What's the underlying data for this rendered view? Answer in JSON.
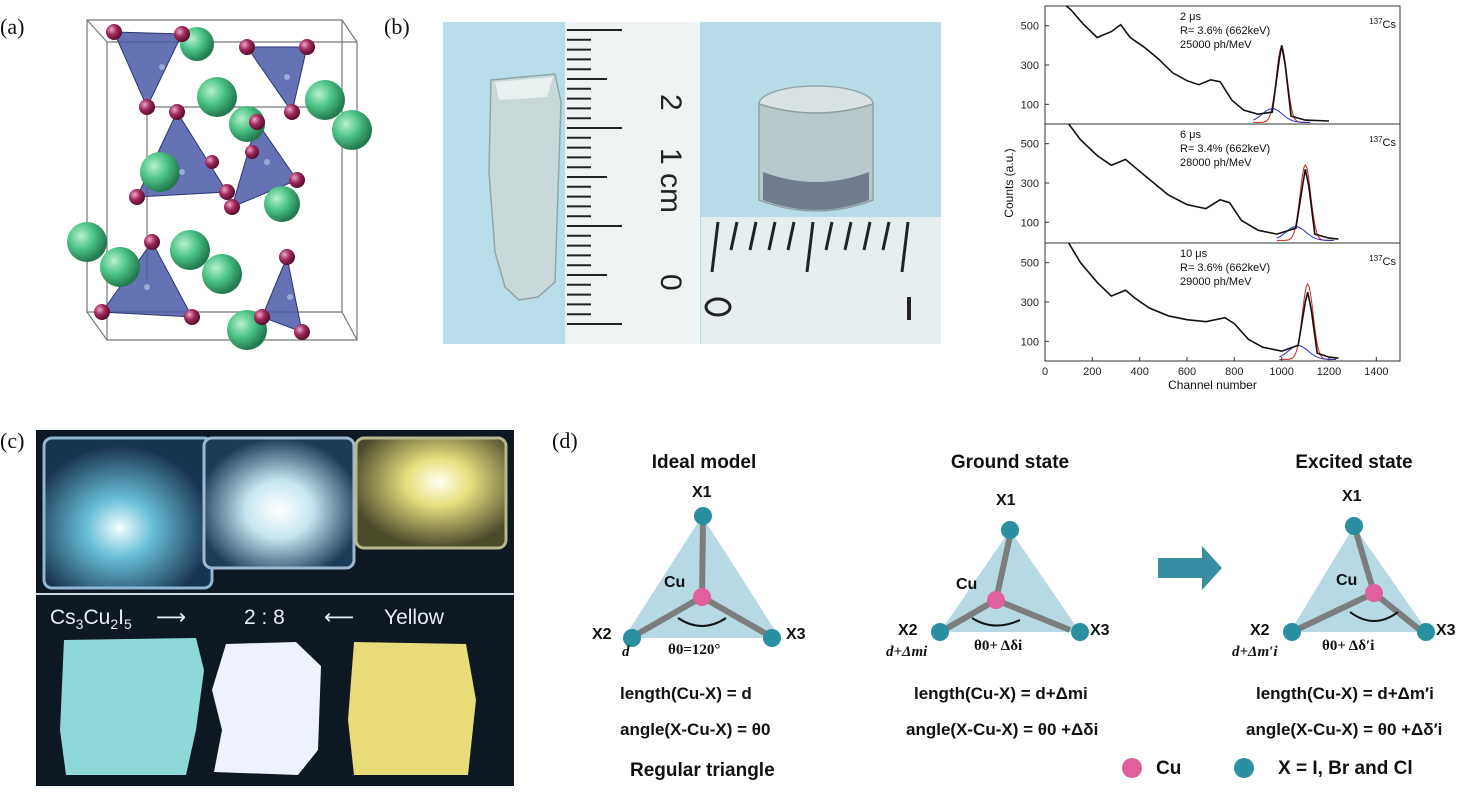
{
  "panel_labels": {
    "a": "(a)",
    "b": "(b)",
    "c": "(c)",
    "d": "(d)"
  },
  "panel_b_photo": {
    "ruler_labels": [
      "0",
      "1 cm",
      "2"
    ]
  },
  "panel_c_photo": {
    "caption_left": "Cs3Cu2I5",
    "caption_left_formula": {
      "p1": "Cs",
      "s1": "3",
      "p2": "Cu",
      "s2": "2",
      "p3": "I",
      "s3": "5"
    },
    "caption_arrow_right": "⟶",
    "caption_mid": "2 : 8",
    "caption_arrow_left": "⟵",
    "caption_right": "Yellow"
  },
  "chart_data": [
    {
      "type": "line",
      "panel": "top",
      "annotation_lines": [
        "2 μs",
        "R= 3.6% (662keV)",
        "25000 ph/MeV"
      ],
      "source_label": "137Cs",
      "ylim": [
        0,
        600
      ],
      "yticks": [
        100,
        300,
        500
      ],
      "xlim": [
        0,
        1500
      ],
      "peak_channel": 1000,
      "series": [
        {
          "values_xy": [
            [
              90,
              600
            ],
            [
              110,
              580
            ],
            [
              160,
              510
            ],
            [
              220,
              440
            ],
            [
              280,
              470
            ],
            [
              320,
              505
            ],
            [
              360,
              440
            ],
            [
              420,
              390
            ],
            [
              480,
              330
            ],
            [
              540,
              260
            ],
            [
              600,
              220
            ],
            [
              650,
              200
            ],
            [
              700,
              225
            ],
            [
              740,
              215
            ],
            [
              790,
              120
            ],
            [
              840,
              70
            ],
            [
              900,
              50
            ],
            [
              960,
              60
            ],
            [
              990,
              330
            ],
            [
              1000,
              400
            ],
            [
              1015,
              300
            ],
            [
              1040,
              40
            ],
            [
              1100,
              20
            ],
            [
              1200,
              15
            ]
          ]
        }
      ]
    },
    {
      "type": "line",
      "panel": "middle",
      "annotation_lines": [
        "6 μs",
        "R= 3.4% (662keV)",
        "28000 ph/MeV"
      ],
      "source_label": "137Cs",
      "ylabel": "Counts (a.u.)",
      "ylim": [
        0,
        600
      ],
      "yticks": [
        100,
        300,
        500
      ],
      "xlim": [
        0,
        1500
      ],
      "peak_channel": 1100,
      "series": [
        {
          "values_xy": [
            [
              100,
              600
            ],
            [
              150,
              520
            ],
            [
              220,
              440
            ],
            [
              280,
              390
            ],
            [
              340,
              420
            ],
            [
              380,
              380
            ],
            [
              440,
              320
            ],
            [
              520,
              240
            ],
            [
              600,
              190
            ],
            [
              680,
              170
            ],
            [
              740,
              215
            ],
            [
              780,
              200
            ],
            [
              830,
              110
            ],
            [
              900,
              60
            ],
            [
              980,
              40
            ],
            [
              1060,
              70
            ],
            [
              1090,
              300
            ],
            [
              1100,
              370
            ],
            [
              1115,
              280
            ],
            [
              1140,
              40
            ],
            [
              1200,
              20
            ],
            [
              1240,
              15
            ]
          ]
        }
      ]
    },
    {
      "type": "line",
      "panel": "bottom",
      "annotation_lines": [
        "10 μs",
        "R= 3.6% (662keV)",
        "29000 ph/MeV"
      ],
      "source_label": "137Cs",
      "xlabel": "Channel number",
      "ylim": [
        0,
        600
      ],
      "yticks": [
        100,
        300,
        500
      ],
      "xlim": [
        0,
        1500
      ],
      "xticks": [
        0,
        200,
        400,
        600,
        800,
        1000,
        1200,
        1400
      ],
      "peak_channel": 1110,
      "series": [
        {
          "values_xy": [
            [
              100,
              600
            ],
            [
              150,
              500
            ],
            [
              220,
              400
            ],
            [
              280,
              330
            ],
            [
              340,
              360
            ],
            [
              380,
              320
            ],
            [
              440,
              270
            ],
            [
              520,
              230
            ],
            [
              600,
              210
            ],
            [
              680,
              200
            ],
            [
              760,
              220
            ],
            [
              800,
              190
            ],
            [
              860,
              110
            ],
            [
              920,
              70
            ],
            [
              1000,
              50
            ],
            [
              1070,
              80
            ],
            [
              1100,
              300
            ],
            [
              1110,
              350
            ],
            [
              1125,
              260
            ],
            [
              1150,
              40
            ],
            [
              1200,
              20
            ],
            [
              1240,
              15
            ]
          ]
        }
      ]
    }
  ],
  "panel_d": {
    "columns": [
      {
        "title": "Ideal model",
        "center_label": "Cu",
        "vertex_labels": [
          "X1",
          "X2",
          "X3"
        ],
        "bond_label": "d",
        "angle_label": "θ0=120°",
        "eq_length": "length(Cu-X) = d",
        "eq_angle": "angle(X-Cu-X) = θ0",
        "footer": "Regular triangle"
      },
      {
        "title": "Ground state",
        "center_label": "Cu",
        "vertex_labels": [
          "X1",
          "X2",
          "X3"
        ],
        "bond_label": "d+Δmi",
        "angle_label": "θ0+ Δδi",
        "eq_length": "length(Cu-X) = d+Δmi",
        "eq_angle": "angle(X-Cu-X) = θ0 +Δδi"
      },
      {
        "title": "Excited state",
        "center_label": "Cu",
        "vertex_labels": [
          "X1",
          "X2",
          "X3"
        ],
        "bond_label": "d+Δm′i",
        "angle_label": "θ0+ Δδ′i",
        "eq_length": "length(Cu-X) = d+Δm′i",
        "eq_angle": "angle(X-Cu-X) = θ0 +Δδ′i"
      }
    ],
    "legend": [
      {
        "label": "Cu",
        "color": "#e0609e"
      },
      {
        "label": "X = I, Br and Cl",
        "color": "#2a8fa0"
      }
    ],
    "colors": {
      "triangle": "#b6d9e3",
      "bond": "#7d7d7d",
      "arrow": "#3a8ea3"
    }
  }
}
